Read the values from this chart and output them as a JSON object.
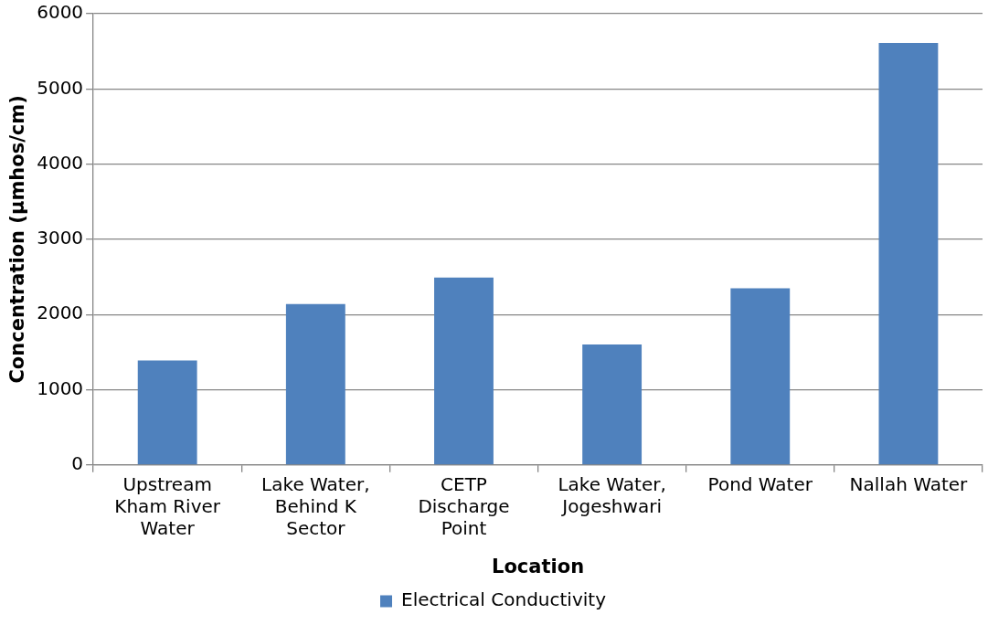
{
  "chart_data": {
    "type": "bar",
    "xlabel": "Location",
    "ylabel": "Concentration (µmhos/cm)",
    "categories": [
      "Upstream Kham River Water",
      "Lake Water, Behind K Sector",
      "CETP Discharge Point",
      "Lake Water, Jogeshwari",
      "Pond Water",
      "Nallah Water"
    ],
    "series": [
      {
        "name": "Electrical Conductivity",
        "color": "#4f81bd",
        "values": [
          1390,
          2140,
          2490,
          1600,
          2350,
          5610
        ]
      }
    ],
    "ylim": [
      0,
      6000
    ],
    "yticks": [
      0,
      1000,
      2000,
      3000,
      4000,
      5000,
      6000
    ],
    "grid": "y",
    "legend": "bottom"
  }
}
